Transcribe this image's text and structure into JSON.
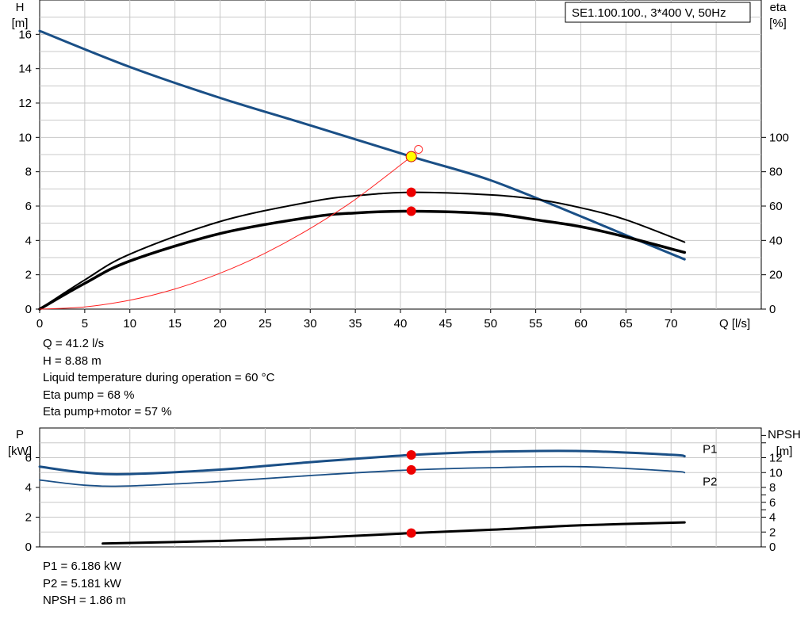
{
  "chart_data": [
    {
      "type": "line",
      "title": "SE1.100.100., 3*400 V, 50Hz",
      "xlabel": "Q [l/s]",
      "y_left_label": "H",
      "y_left_unit": "[m]",
      "y_right_label": "eta",
      "y_right_unit": "[%]",
      "xlim": [
        0,
        80
      ],
      "x_ticks": [
        0,
        5,
        10,
        15,
        20,
        25,
        30,
        35,
        40,
        45,
        50,
        55,
        60,
        65,
        70
      ],
      "ylim_left": [
        0,
        18
      ],
      "y_left_ticks": [
        0,
        2,
        4,
        6,
        8,
        10,
        12,
        14,
        16
      ],
      "ylim_right": [
        0,
        180
      ],
      "y_right_ticks": [
        0,
        20,
        40,
        60,
        80,
        100
      ],
      "grid": true,
      "series": [
        {
          "axis": "left",
          "color": "#1a4f86",
          "width": 3,
          "x": [
            0,
            10,
            20,
            30,
            41.2,
            50,
            60,
            65,
            71.5
          ],
          "y": [
            16.2,
            14.1,
            12.3,
            10.7,
            8.88,
            7.5,
            5.4,
            4.3,
            2.9
          ]
        },
        {
          "axis": "right",
          "color": "#000000",
          "width": 2,
          "x": [
            0,
            5,
            10,
            20,
            30,
            35,
            41.2,
            50,
            55,
            60,
            65,
            71.5
          ],
          "y": [
            0,
            17,
            32,
            51,
            62.5,
            66,
            68,
            66.5,
            64,
            59,
            52,
            39
          ]
        },
        {
          "axis": "right",
          "color": "#000000",
          "width": 3.5,
          "x": [
            0,
            5,
            10,
            20,
            30,
            35,
            41.2,
            50,
            55,
            60,
            65,
            71.5
          ],
          "y": [
            0,
            15,
            28,
            44,
            53.5,
            56,
            57,
            55.5,
            52,
            48,
            42,
            33
          ]
        },
        {
          "axis": "left",
          "color": "#ff2020",
          "width": 1,
          "x": [
            0,
            5,
            10,
            15,
            20,
            25,
            30,
            35,
            41.2
          ],
          "y": [
            0,
            0.13,
            0.52,
            1.17,
            2.09,
            3.26,
            4.7,
            6.39,
            8.88
          ]
        }
      ],
      "markers": [
        {
          "axis": "left",
          "x": 41.2,
          "y": 8.88,
          "fill": "#ffff00",
          "stroke": "#cc0000",
          "r": 6.5
        },
        {
          "axis": "left",
          "x": 42,
          "y": 9.3,
          "fill": "none",
          "stroke": "#ff3030",
          "r": 5
        },
        {
          "axis": "right",
          "x": 41.2,
          "y": 68,
          "fill": "#ee0000",
          "stroke": "#ee0000",
          "r": 5.5
        },
        {
          "axis": "right",
          "x": 41.2,
          "y": 57,
          "fill": "#ee0000",
          "stroke": "#ee0000",
          "r": 5.5
        }
      ]
    },
    {
      "type": "line",
      "y_left_label": "P",
      "y_left_unit": "[kW]",
      "y_right_label": "NPSH",
      "y_right_unit": "[m]",
      "xlim": [
        0,
        80
      ],
      "ylim_left": [
        0,
        8
      ],
      "y_left_ticks": [
        0,
        2,
        4,
        6
      ],
      "ylim_right": [
        0,
        16
      ],
      "y_right_ticks": [
        0,
        2,
        4,
        6,
        8,
        10,
        12
      ],
      "y_right_minor": [
        5,
        7,
        14,
        15
      ],
      "grid": true,
      "series": [
        {
          "name": "P1",
          "axis": "left",
          "color": "#1a4f86",
          "width": 3,
          "x": [
            0,
            5,
            10,
            20,
            30,
            41.2,
            50,
            60,
            70,
            71.5
          ],
          "y": [
            5.4,
            5.0,
            4.9,
            5.2,
            5.7,
            6.186,
            6.4,
            6.45,
            6.2,
            6.1
          ]
        },
        {
          "name": "P2",
          "axis": "left",
          "color": "#1a4f86",
          "width": 1.8,
          "x": [
            0,
            5,
            10,
            20,
            30,
            41.2,
            50,
            60,
            70,
            71.5
          ],
          "y": [
            4.5,
            4.15,
            4.1,
            4.4,
            4.8,
            5.181,
            5.33,
            5.4,
            5.1,
            5.0
          ]
        },
        {
          "name": "NPSH",
          "axis": "right",
          "color": "#000000",
          "width": 3,
          "x": [
            7,
            20,
            30,
            41.2,
            50,
            60,
            71.5
          ],
          "y": [
            0.45,
            0.8,
            1.2,
            1.86,
            2.3,
            2.9,
            3.3
          ]
        }
      ],
      "markers": [
        {
          "axis": "left",
          "x": 41.2,
          "y": 6.186,
          "fill": "#ee0000",
          "stroke": "#ee0000",
          "r": 5.5
        },
        {
          "axis": "left",
          "x": 41.2,
          "y": 5.181,
          "fill": "#ee0000",
          "stroke": "#ee0000",
          "r": 5.5
        },
        {
          "axis": "right",
          "x": 41.2,
          "y": 1.86,
          "fill": "#ee0000",
          "stroke": "#ee0000",
          "r": 5.5
        }
      ],
      "series_labels": [
        {
          "text": "P1",
          "x": 73.5,
          "y": 6.6,
          "color": "#1a4f86"
        },
        {
          "text": "P2",
          "x": 73.5,
          "y": 4.4,
          "color": "#1a4f86"
        }
      ]
    }
  ],
  "info_top": [
    "Q = 41.2 l/s",
    "H = 8.88 m",
    "Liquid temperature during operation = 60 °C",
    "Eta pump = 68 %",
    "Eta pump+motor = 57 %"
  ],
  "info_bottom": [
    "P1 = 6.186 kW",
    "P2 = 5.181 kW",
    "NPSH = 1.86 m"
  ]
}
